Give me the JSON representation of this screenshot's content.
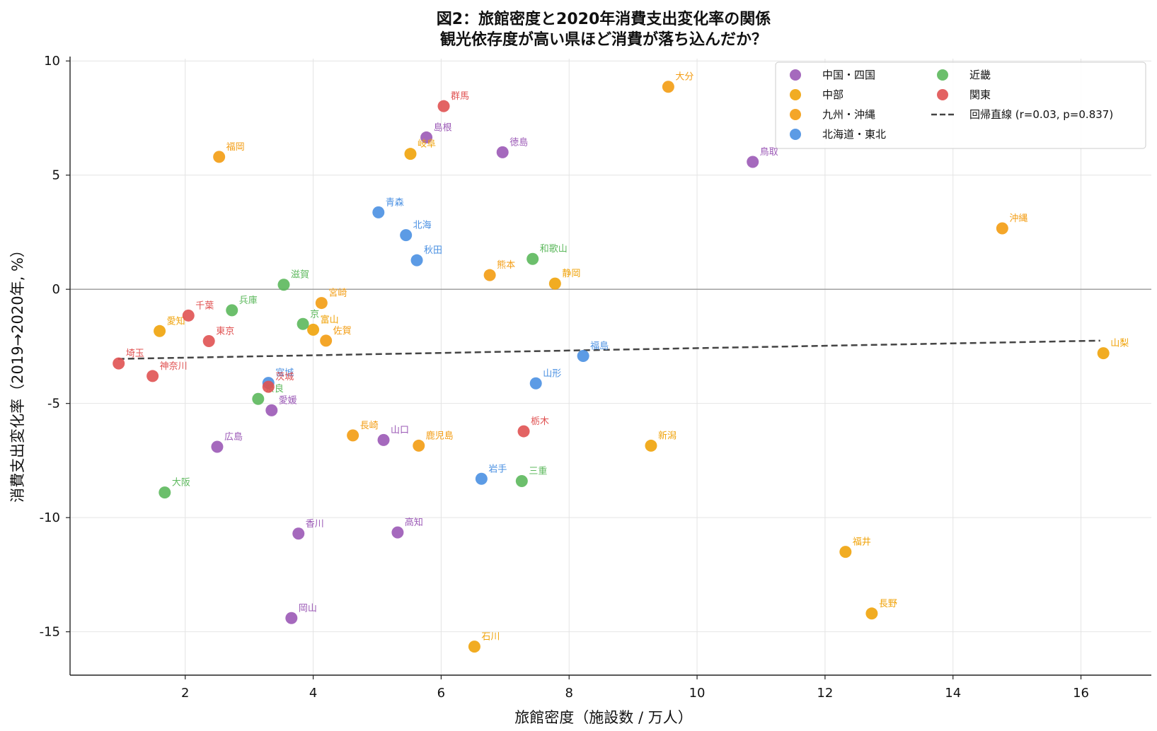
{
  "chart_data": {
    "type": "scatter",
    "title": "図2：旅館密度と2020年消費支出変化率の関係",
    "subtitle": "観光依存度が高い県ほど消費が落ち込んだか？",
    "xlabel": "旅館密度（施設数 / 万人）",
    "ylabel": "消費支出変化率（2019→2020年, %）",
    "xlim": [
      0.2,
      17.1
    ],
    "ylim": [
      -16.9,
      10.1
    ],
    "xticks": [
      2,
      4,
      6,
      8,
      10,
      12,
      14,
      16
    ],
    "yticks": [
      10,
      5,
      0,
      -5,
      -10,
      -15
    ],
    "grid": true,
    "zero_line": 0,
    "legend_position": "top-right",
    "colors": {
      "中国・四国": "#9b59b6",
      "中部": "#f0a30a",
      "九州・沖縄": "#f39c12",
      "北海道・東北": "#4a90e2",
      "近畿": "#5cb85c",
      "関東": "#e05252",
      "regression": "#444444"
    },
    "legend": [
      {
        "name": "中国・四国",
        "kind": "marker"
      },
      {
        "name": "中部",
        "kind": "marker"
      },
      {
        "name": "九州・沖縄",
        "kind": "marker"
      },
      {
        "name": "北海道・東北",
        "kind": "marker"
      },
      {
        "name": "近畿",
        "kind": "marker"
      },
      {
        "name": "関東",
        "kind": "marker"
      },
      {
        "name": "回帰直線 (r=0.03, p=0.837)",
        "kind": "line"
      }
    ],
    "regression": {
      "x": [
        0.95,
        16.3
      ],
      "y": [
        -3.05,
        -2.25
      ]
    },
    "series": [
      {
        "name": "中国・四国",
        "points": [
          {
            "label": "島根",
            "x": 5.77,
            "y": 6.65
          },
          {
            "label": "徳島",
            "x": 6.96,
            "y": 6.0
          },
          {
            "label": "鳥取",
            "x": 10.87,
            "y": 5.58
          },
          {
            "label": "愛媛",
            "x": 3.35,
            "y": -5.3
          },
          {
            "label": "広島",
            "x": 2.5,
            "y": -6.9
          },
          {
            "label": "山口",
            "x": 5.1,
            "y": -6.6
          },
          {
            "label": "香川",
            "x": 3.77,
            "y": -10.7
          },
          {
            "label": "高知",
            "x": 5.32,
            "y": -10.65
          },
          {
            "label": "岡山",
            "x": 3.66,
            "y": -14.4
          }
        ]
      },
      {
        "name": "中部",
        "points": [
          {
            "label": "岐阜",
            "x": 5.52,
            "y": 5.93
          },
          {
            "label": "静岡",
            "x": 7.78,
            "y": 0.25
          },
          {
            "label": "愛知",
            "x": 1.6,
            "y": -1.83
          },
          {
            "label": "富山",
            "x": 4.0,
            "y": -1.77
          },
          {
            "label": "山梨",
            "x": 16.35,
            "y": -2.8
          },
          {
            "label": "新潟",
            "x": 9.28,
            "y": -6.85
          },
          {
            "label": "石川",
            "x": 6.52,
            "y": -15.65
          },
          {
            "label": "福井",
            "x": 12.32,
            "y": -11.5
          },
          {
            "label": "長野",
            "x": 12.73,
            "y": -14.2
          }
        ]
      },
      {
        "name": "九州・沖縄",
        "points": [
          {
            "label": "大分",
            "x": 9.55,
            "y": 8.87
          },
          {
            "label": "福岡",
            "x": 2.53,
            "y": 5.8
          },
          {
            "label": "沖縄",
            "x": 14.77,
            "y": 2.67
          },
          {
            "label": "熊本",
            "x": 6.76,
            "y": 0.62
          },
          {
            "label": "宮崎",
            "x": 4.13,
            "y": -0.6
          },
          {
            "label": "佐賀",
            "x": 4.2,
            "y": -2.25
          },
          {
            "label": "長崎",
            "x": 4.62,
            "y": -6.4
          },
          {
            "label": "鹿児島",
            "x": 5.65,
            "y": -6.85
          }
        ]
      },
      {
        "name": "北海道・東北",
        "points": [
          {
            "label": "青森",
            "x": 5.02,
            "y": 3.37
          },
          {
            "label": "北海",
            "x": 5.45,
            "y": 2.37
          },
          {
            "label": "秋田",
            "x": 5.62,
            "y": 1.27
          },
          {
            "label": "福島",
            "x": 8.22,
            "y": -2.92
          },
          {
            "label": "山形",
            "x": 7.48,
            "y": -4.12
          },
          {
            "label": "宮城",
            "x": 3.3,
            "y": -4.1
          },
          {
            "label": "岩手",
            "x": 6.63,
            "y": -8.3
          }
        ]
      },
      {
        "name": "近畿",
        "points": [
          {
            "label": "和歌山",
            "x": 7.43,
            "y": 1.33
          },
          {
            "label": "滋賀",
            "x": 3.54,
            "y": 0.2
          },
          {
            "label": "兵庫",
            "x": 2.73,
            "y": -0.92
          },
          {
            "label": "京",
            "x": 3.84,
            "y": -1.52
          },
          {
            "label": "奈良",
            "x": 3.14,
            "y": -4.8
          },
          {
            "label": "三重",
            "x": 7.26,
            "y": -8.4
          },
          {
            "label": "大阪",
            "x": 1.68,
            "y": -8.9
          }
        ]
      },
      {
        "name": "関東",
        "points": [
          {
            "label": "群馬",
            "x": 6.04,
            "y": 8.02
          },
          {
            "label": "千葉",
            "x": 2.05,
            "y": -1.15
          },
          {
            "label": "東京",
            "x": 2.37,
            "y": -2.27
          },
          {
            "label": "埼玉",
            "x": 0.96,
            "y": -3.25
          },
          {
            "label": "神奈川",
            "x": 1.49,
            "y": -3.8
          },
          {
            "label": "茨城",
            "x": 3.3,
            "y": -4.27
          },
          {
            "label": "栃木",
            "x": 7.29,
            "y": -6.22
          }
        ]
      }
    ]
  }
}
